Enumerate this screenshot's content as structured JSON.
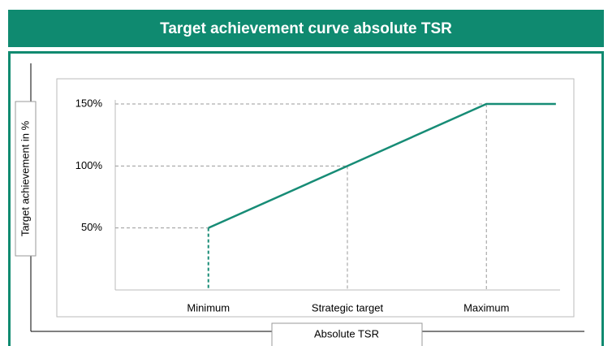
{
  "chart_data": {
    "type": "line",
    "title": "Target achievement curve absolute TSR",
    "xlabel": "Absolute TSR",
    "ylabel": "Target achievement in %",
    "x": [
      1,
      2,
      3,
      3.5
    ],
    "values": [
      50,
      100,
      150,
      150
    ],
    "color": "#178c76",
    "xlim": [
      0.33,
      3.53
    ],
    "xticks": [
      {
        "value": 1,
        "label": "Minimum"
      },
      {
        "value": 2,
        "label": "Strategic target"
      },
      {
        "value": 3,
        "label": "Maximum"
      }
    ],
    "ylim": [
      0,
      150
    ],
    "yticks": [
      {
        "value": 50,
        "label": "50%"
      },
      {
        "value": 100,
        "label": "100%"
      },
      {
        "value": 150,
        "label": "150%"
      }
    ]
  }
}
